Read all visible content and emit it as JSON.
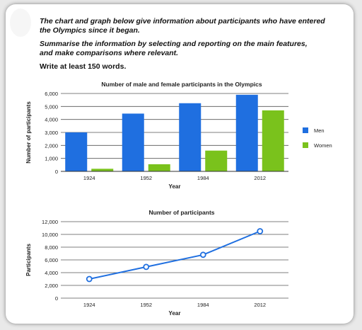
{
  "prompt": {
    "line1": "The chart and graph below give information about participants who have entered",
    "line2": "the Olympics since it began.",
    "line3": "Summarise the information by selecting and reporting on the main features,",
    "line4": "and make comparisons where relevant.",
    "line5": "Write at least 150 words."
  },
  "chart_data": [
    {
      "type": "bar",
      "title": "Number of male and female participants in the Olympics",
      "xlabel": "Year",
      "ylabel": "Number of participants",
      "categories": [
        "1924",
        "1952",
        "1984",
        "2012"
      ],
      "series": [
        {
          "name": "Men",
          "values": [
            3000,
            4450,
            5250,
            5900
          ],
          "color": "#1f6fe0"
        },
        {
          "name": "Women",
          "values": [
            200,
            550,
            1600,
            4700
          ],
          "color": "#7ac21c"
        }
      ],
      "ylim": [
        0,
        6000
      ],
      "yticks": [
        "0",
        "1,000",
        "2,000",
        "3,000",
        "4,000",
        "5,000",
        "6,000"
      ],
      "grid": true,
      "legend": "right"
    },
    {
      "type": "line",
      "title": "Number of participants",
      "xlabel": "Year",
      "ylabel": "Participants",
      "categories": [
        "1924",
        "1952",
        "1984",
        "2012"
      ],
      "series": [
        {
          "values": [
            3000,
            4900,
            6800,
            10500
          ],
          "color": "#1f6fe0"
        }
      ],
      "ylim": [
        0,
        12000
      ],
      "yticks": [
        "0",
        "2,000",
        "4,000",
        "6,000",
        "8,000",
        "10,000",
        "12,000"
      ],
      "grid": true
    }
  ]
}
